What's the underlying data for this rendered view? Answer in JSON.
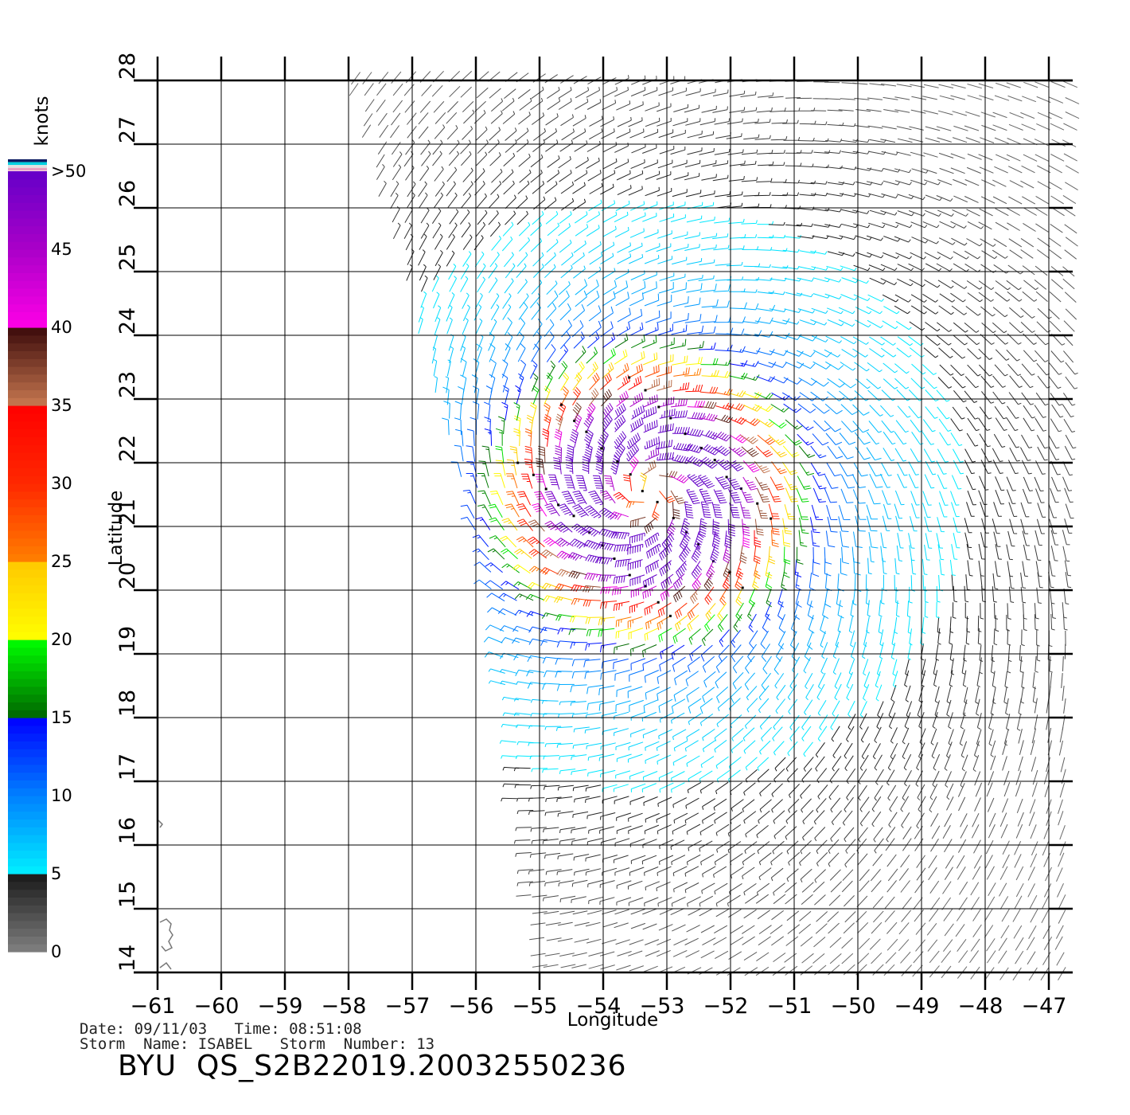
{
  "chart_data": {
    "type": "wind-barb-map",
    "xlabel": "Longitude",
    "ylabel": "Latitude",
    "xlim": [
      -61,
      -46.6
    ],
    "ylim": [
      14,
      28
    ],
    "xticks": [
      -61,
      -60,
      -59,
      -58,
      -57,
      -56,
      -55,
      -54,
      -53,
      -52,
      -51,
      -50,
      -49,
      -48,
      -47
    ],
    "xtick_labels": [
      "−61",
      "−60",
      "−59",
      "−58",
      "−57",
      "−56",
      "−55",
      "−54",
      "−53",
      "−52",
      "−51",
      "−50",
      "−49",
      "−48",
      "−47"
    ],
    "yticks": [
      14,
      15,
      16,
      17,
      18,
      19,
      20,
      21,
      22,
      23,
      24,
      25,
      26,
      27,
      28
    ],
    "ytick_labels": [
      "14",
      "15",
      "16",
      "17",
      "18",
      "19",
      "20",
      "21",
      "22",
      "23",
      "24",
      "25",
      "26",
      "27",
      "28"
    ],
    "grid": true,
    "storm_center": {
      "lon": -53.3,
      "lat": 21.5
    },
    "swath": {
      "north_edge": [
        [
          -58.1,
          28.0
        ],
        [
          -56.0,
          28.0
        ]
      ],
      "west_edge": [
        [
          -58.1,
          28.0
        ],
        [
          -57.0,
          24.3
        ],
        [
          -55.8,
          20.2
        ],
        [
          -55.2,
          17.8
        ],
        [
          -54.8,
          14.0
        ]
      ]
    },
    "colorbar": {
      "title": "knots",
      "labels": [
        ">50",
        "45",
        "40",
        "35",
        "30",
        "25",
        "20",
        "15",
        "10",
        "5",
        "0"
      ],
      "min": 0,
      "max": 55
    }
  },
  "footer": {
    "date_line": "Date: 09/11/03   Time: 08:51:08",
    "storm_line": "Storm  Name: ISABEL   Storm  Number: 13",
    "file_id": "BYU  QS_S2B22019.20032550236"
  }
}
